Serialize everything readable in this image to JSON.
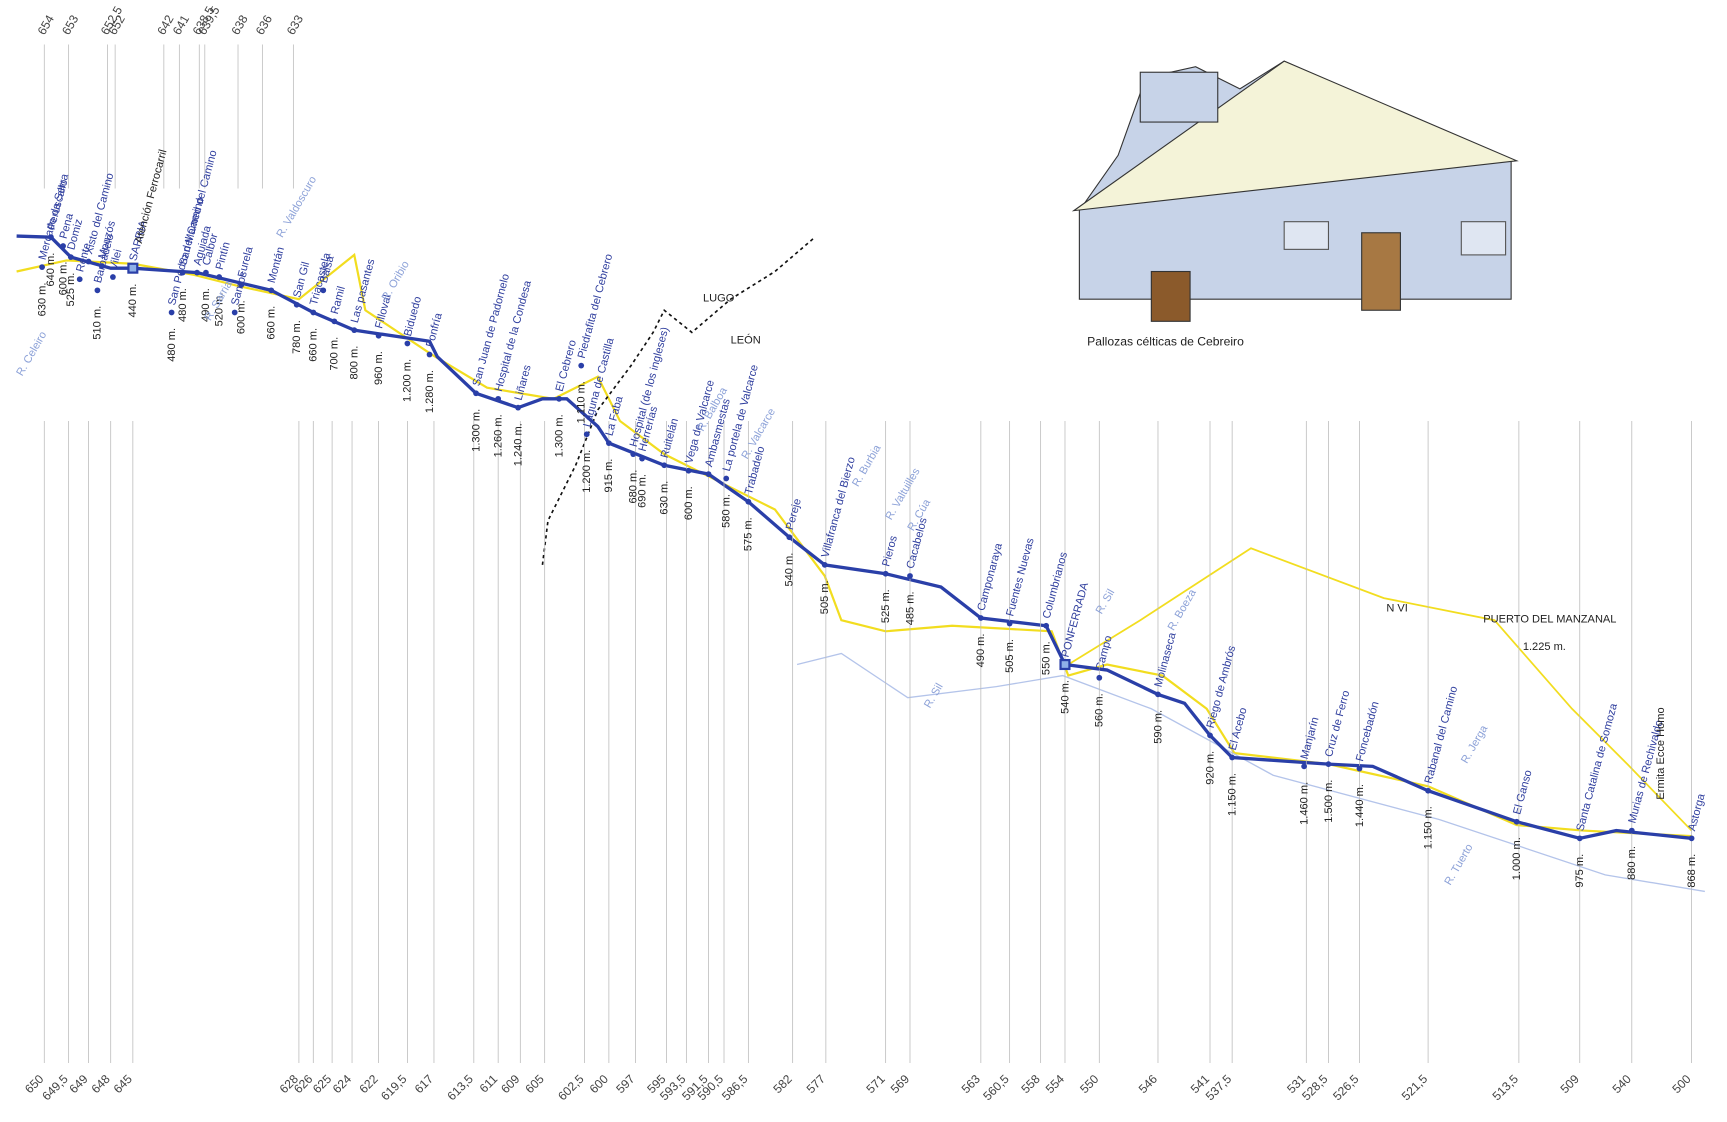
{
  "km_top": [
    "654",
    "653",
    "652,5",
    "652",
    "642",
    "641",
    "638,5",
    "639,5",
    "638",
    "636",
    "633"
  ],
  "km_bottom": [
    "650",
    "649,5",
    "649",
    "648",
    "645",
    "628",
    "626",
    "625",
    "624",
    "622",
    "619,5",
    "617",
    "613,5",
    "611",
    "609",
    "605",
    "602,5",
    "600",
    "597",
    "595",
    "593,5",
    "591,5",
    "590,5",
    "586,5",
    "582",
    "577",
    "571",
    "569",
    "563",
    "560,5",
    "558",
    "554",
    "550",
    "546",
    "541",
    "537,5",
    "531",
    "528,5",
    "526,5",
    "521,5",
    "513,5",
    "509",
    "540",
    "500"
  ],
  "towns": [
    {
      "name": "Mercado da Serra",
      "altitude": "630 m."
    },
    {
      "name": "Peruscallo",
      "altitude": "640 m."
    },
    {
      "name": "Pena",
      "altitude": "600 m."
    },
    {
      "name": "Domiz",
      "altitude": "525 m."
    },
    {
      "name": "Rente"
    },
    {
      "name": "Xisto del Camino"
    },
    {
      "name": "Barbadelo",
      "altitude": "510 m."
    },
    {
      "name": "Mouzós"
    },
    {
      "name": "Vilei"
    },
    {
      "name": "SARRIA",
      "altitude": "440 m."
    },
    {
      "name": "San Pedro del Camino",
      "altitude": "480 m."
    },
    {
      "name": "San Mamed del Camino",
      "altitude": "480 m."
    },
    {
      "name": "Aguiada"
    },
    {
      "name": "Calbor",
      "altitude": "490 m."
    },
    {
      "name": "Pintín",
      "altitude": "520 m."
    },
    {
      "name": "Furela",
      "altitude": "600 m."
    },
    {
      "name": "Montán",
      "altitude": "660 m."
    },
    {
      "name": "Samos"
    },
    {
      "name": "San Gil",
      "altitude": "780 m."
    },
    {
      "name": "Triacastela",
      "altitude": "660 m."
    },
    {
      "name": "Balsa"
    },
    {
      "name": "Ramil",
      "altitude": "700 m."
    },
    {
      "name": "Las pasantes",
      "altitude": "800 m."
    },
    {
      "name": "Filloval",
      "altitude": "960 m."
    },
    {
      "name": "Biduedo",
      "altitude": "1.200 m."
    },
    {
      "name": "Fonfría",
      "altitude": "1.280 m."
    },
    {
      "name": "San Juan de Padornelo",
      "altitude": "1.300 m."
    },
    {
      "name": "Hospital de la Condesa",
      "altitude": "1.260 m."
    },
    {
      "name": "Liñares",
      "altitude": "1.240 m."
    },
    {
      "name": "El Cebrero",
      "altitude": "1.300 m."
    },
    {
      "name": "Piedrafita del Cebrero",
      "altitude": "1.110 m."
    },
    {
      "name": "Laguna de Castilla",
      "altitude": "1.200 m."
    },
    {
      "name": "La Faba",
      "altitude": "915 m."
    },
    {
      "name": "Hospital (de los ingleses)",
      "altitude": "680 m."
    },
    {
      "name": "Herrerías",
      "altitude": "690 m."
    },
    {
      "name": "Ruitelán",
      "altitude": "630 m."
    },
    {
      "name": "Vega de Valcarce",
      "altitude": "600 m."
    },
    {
      "name": "Ambasmestas"
    },
    {
      "name": "La portela de Valcarce",
      "altitude": "580 m."
    },
    {
      "name": "Trabadelo",
      "altitude": "575 m."
    },
    {
      "name": "Pereje",
      "altitude": "540 m."
    },
    {
      "name": "Villafranca del Bierzo",
      "altitude": "505 m."
    },
    {
      "name": "Pieros",
      "altitude": "525 m."
    },
    {
      "name": "Cacabelos",
      "altitude": "485 m."
    },
    {
      "name": "Camponaraya",
      "altitude": "490 m."
    },
    {
      "name": "Fuentes Nuevas",
      "altitude": "505 m."
    },
    {
      "name": "Columbrianos",
      "altitude": "550 m."
    },
    {
      "name": "PONFERRADA",
      "altitude": "540 m."
    },
    {
      "name": "Campo",
      "altitude": "560 m."
    },
    {
      "name": "Molinaseca",
      "altitude": "590 m."
    },
    {
      "name": "Riego de Ambrós",
      "altitude": "920 m."
    },
    {
      "name": "El Acebo",
      "altitude": "1.150 m."
    },
    {
      "name": "Manjarín",
      "altitude": "1.460 m."
    },
    {
      "name": "Cruz de Ferro",
      "altitude": "1.500 m."
    },
    {
      "name": "Foncebadón",
      "altitude": "1.440 m."
    },
    {
      "name": "Rabanal del Camino",
      "altitude": "1.150 m."
    },
    {
      "name": "El Ganso",
      "altitude": "1.000 m."
    },
    {
      "name": "Santa Catalina de Somoza",
      "altitude": "975 m."
    },
    {
      "name": "Murias de Rechivaldo",
      "altitude": "880 m."
    },
    {
      "name": "Astorga",
      "altitude": "868 m."
    }
  ],
  "rivers": [
    "R. Celeiro",
    "R. Sarria",
    "R. Oribio",
    "R. Valdoscuro",
    "R. Balboa",
    "R. Valcarce",
    "R. Burbia",
    "R. Valtuilles",
    "R. Cúa",
    "R. Sil",
    "R. Sil",
    "R. Boeza",
    "R. Jerga",
    "R. Tuerto"
  ],
  "regions": [
    "LUGO",
    "LEÓN"
  ],
  "notes": [
    "Atención Ferrocarril",
    "N VI",
    "PUERTO DEL MANZANAL",
    "1.225 m.",
    "Ermita Ecce Homo"
  ],
  "illustration": {
    "caption": "Pallozas célticas de Cebreiro"
  }
}
